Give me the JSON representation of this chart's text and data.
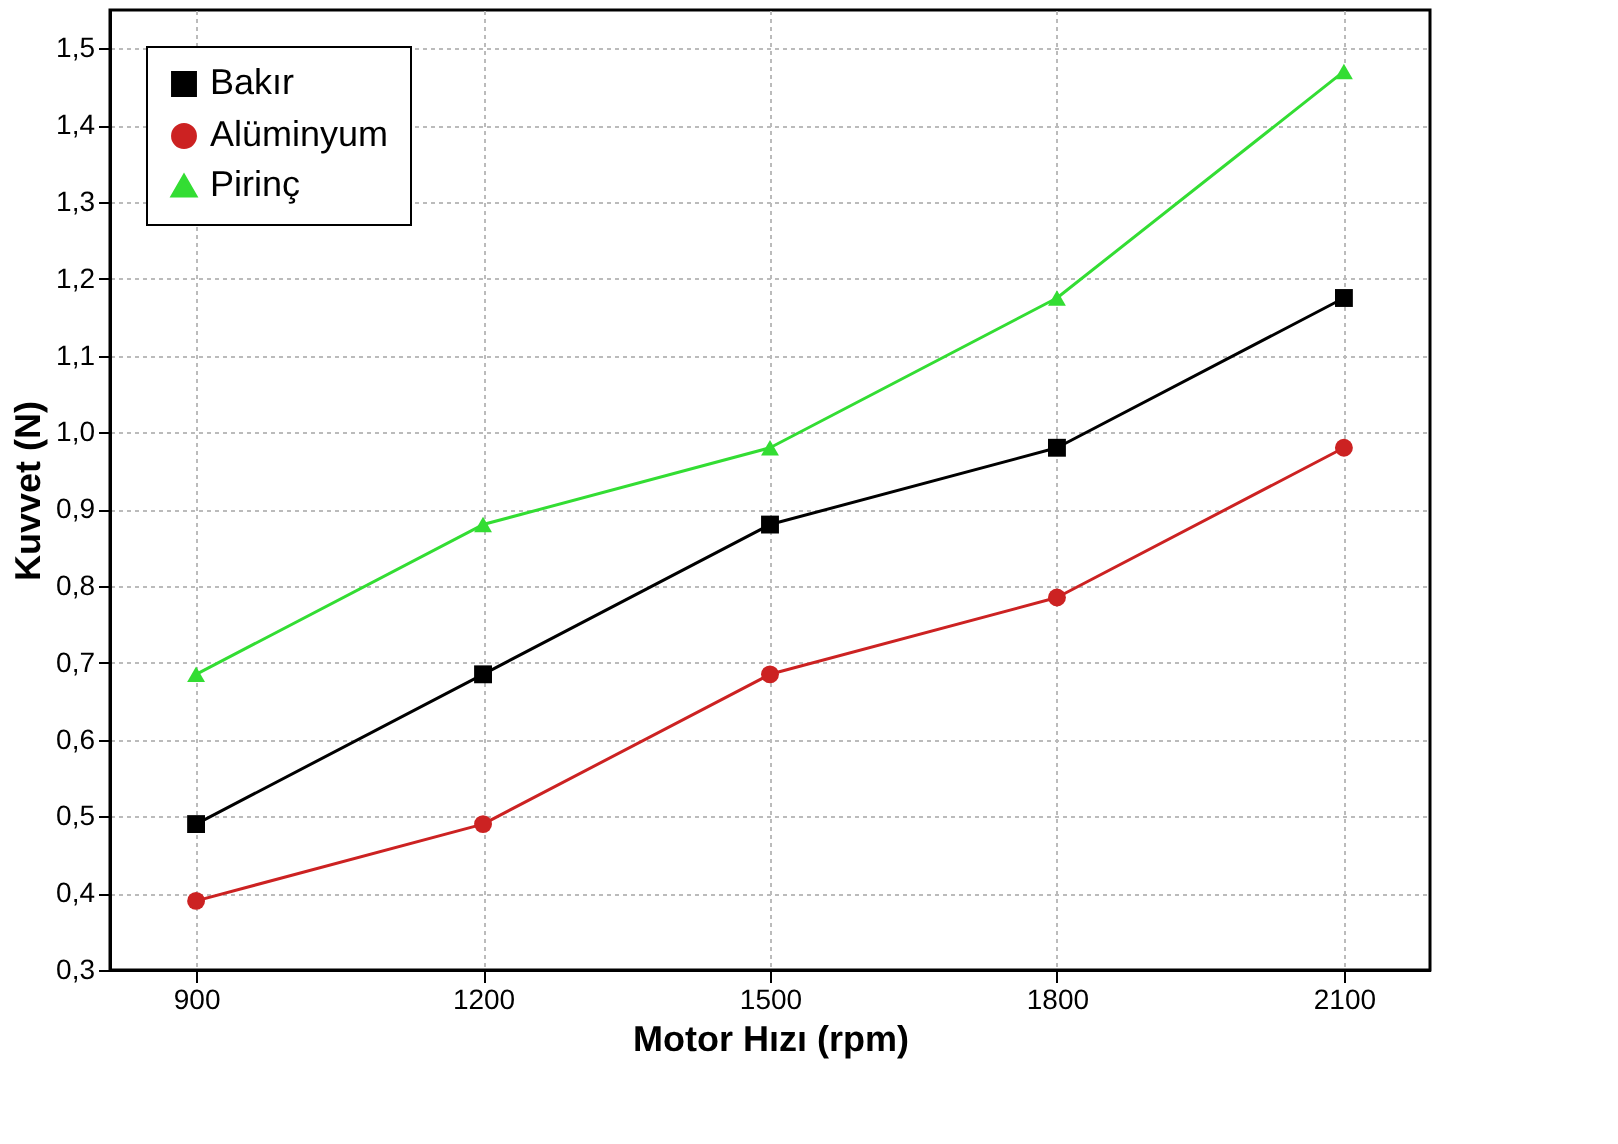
{
  "chart_data": {
    "type": "line",
    "xlabel": "Motor Hızı (rpm)",
    "ylabel": "Kuvvet (N)",
    "x": [
      900,
      1200,
      1500,
      1800,
      2100
    ],
    "xlim": [
      810,
      2190
    ],
    "xticks": [
      900,
      1200,
      1500,
      1800,
      2100
    ],
    "ylim": [
      0.3,
      1.55
    ],
    "yticks": [
      {
        "value": 0.3,
        "label": "0,3"
      },
      {
        "value": 0.4,
        "label": "0,4"
      },
      {
        "value": 0.5,
        "label": "0,5"
      },
      {
        "value": 0.6,
        "label": "0,6"
      },
      {
        "value": 0.7,
        "label": "0,7"
      },
      {
        "value": 0.8,
        "label": "0,8"
      },
      {
        "value": 0.9,
        "label": "0,9"
      },
      {
        "value": 1.0,
        "label": "1,0"
      },
      {
        "value": 1.1,
        "label": "1,1"
      },
      {
        "value": 1.2,
        "label": "1,2"
      },
      {
        "value": 1.3,
        "label": "1,3"
      },
      {
        "value": 1.4,
        "label": "1,4"
      },
      {
        "value": 1.5,
        "label": "1,5"
      }
    ],
    "grid": true,
    "legend": "top left",
    "line_style": "solid",
    "series": [
      {
        "name": "Bakır",
        "color": "#000000",
        "marker": "square",
        "values": [
          0.49,
          0.685,
          0.88,
          0.98,
          1.175
        ]
      },
      {
        "name": "Alüminyum",
        "color": "#cc2222",
        "marker": "circle",
        "values": [
          0.39,
          0.49,
          0.685,
          0.785,
          0.98
        ]
      },
      {
        "name": "Pirinç",
        "color": "#33dd33",
        "marker": "triangle",
        "values": [
          0.685,
          0.88,
          0.98,
          1.175,
          1.47
        ]
      }
    ]
  }
}
